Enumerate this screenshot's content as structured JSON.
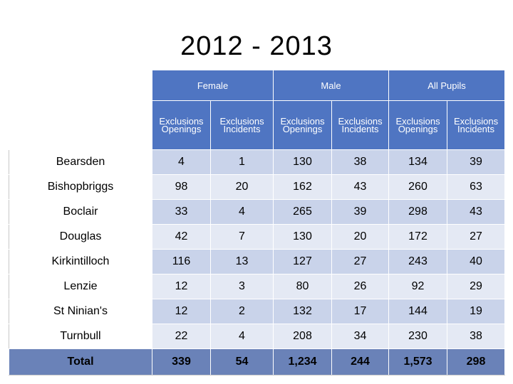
{
  "title": "2012 - 2013",
  "groups": [
    "Female",
    "Male",
    "All Pupils"
  ],
  "subheaders": [
    [
      "Exclusions",
      "Openings"
    ],
    [
      "Exclusions",
      "Incidents"
    ],
    [
      "Exclusions",
      "Openings"
    ],
    [
      "Exclusions",
      "Incidents"
    ],
    [
      "Exclusions",
      "Openings"
    ],
    [
      "Exclusions",
      "Incidents"
    ]
  ],
  "rows": [
    {
      "name": "Bearsden",
      "values": [
        "4",
        "1",
        "130",
        "38",
        "134",
        "39"
      ]
    },
    {
      "name": "Bishopbriggs",
      "values": [
        "98",
        "20",
        "162",
        "43",
        "260",
        "63"
      ]
    },
    {
      "name": "Boclair",
      "values": [
        "33",
        "4",
        "265",
        "39",
        "298",
        "43"
      ]
    },
    {
      "name": "Douglas",
      "values": [
        "42",
        "7",
        "130",
        "20",
        "172",
        "27"
      ]
    },
    {
      "name": "Kirkintilloch",
      "values": [
        "116",
        "13",
        "127",
        "27",
        "243",
        "40"
      ]
    },
    {
      "name": "Lenzie",
      "values": [
        "12",
        "3",
        "80",
        "26",
        "92",
        "29"
      ]
    },
    {
      "name": "St Ninian's",
      "values": [
        "12",
        "2",
        "132",
        "17",
        "144",
        "19"
      ]
    },
    {
      "name": "Turnbull",
      "values": [
        "22",
        "4",
        "208",
        "34",
        "230",
        "38"
      ]
    }
  ],
  "total": {
    "name": "Total",
    "values": [
      "339",
      "54",
      "1,234",
      "244",
      "1,573",
      "298"
    ]
  },
  "highlight_color": "#c89b00",
  "header_color": "#4f75c2"
}
